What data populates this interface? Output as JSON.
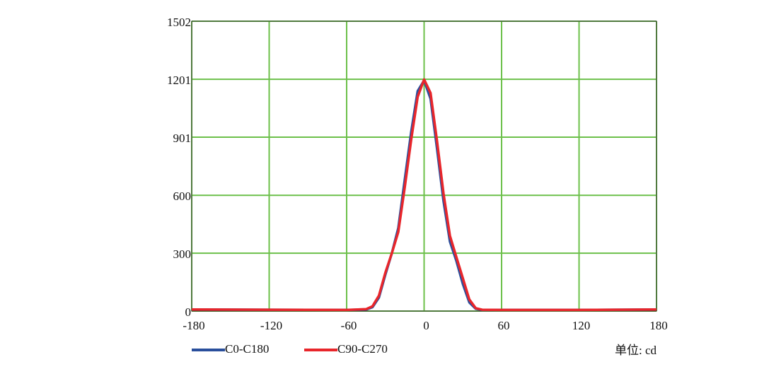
{
  "chart_data": {
    "type": "line",
    "x": [
      -180,
      -60,
      -45,
      -40,
      -35,
      -30,
      -25,
      -20,
      -15,
      -10,
      -5,
      0,
      5,
      10,
      15,
      20,
      25,
      30,
      35,
      40,
      45,
      60,
      120,
      180
    ],
    "series": [
      {
        "name": "C0-C180",
        "color": "#2a4f9c",
        "values": [
          8,
          6,
          8,
          20,
          70,
          190,
          300,
          430,
          680,
          930,
          1140,
          1195,
          1100,
          840,
          570,
          360,
          260,
          140,
          45,
          12,
          6,
          6,
          6,
          8
        ]
      },
      {
        "name": "C90-C270",
        "color": "#e8262b",
        "values": [
          8,
          6,
          10,
          25,
          80,
          200,
          300,
          410,
          640,
          890,
          1110,
          1200,
          1130,
          880,
          610,
          390,
          280,
          170,
          60,
          15,
          7,
          6,
          6,
          8
        ]
      }
    ],
    "xlim": [
      -180,
      180
    ],
    "xticks": [
      -180,
      -120,
      -60,
      0,
      60,
      120,
      180
    ],
    "ylim": [
      0,
      1502
    ],
    "yticks": [
      0,
      300,
      600,
      901,
      1201,
      1502
    ],
    "grid": true,
    "annotation": "单位: cd"
  }
}
